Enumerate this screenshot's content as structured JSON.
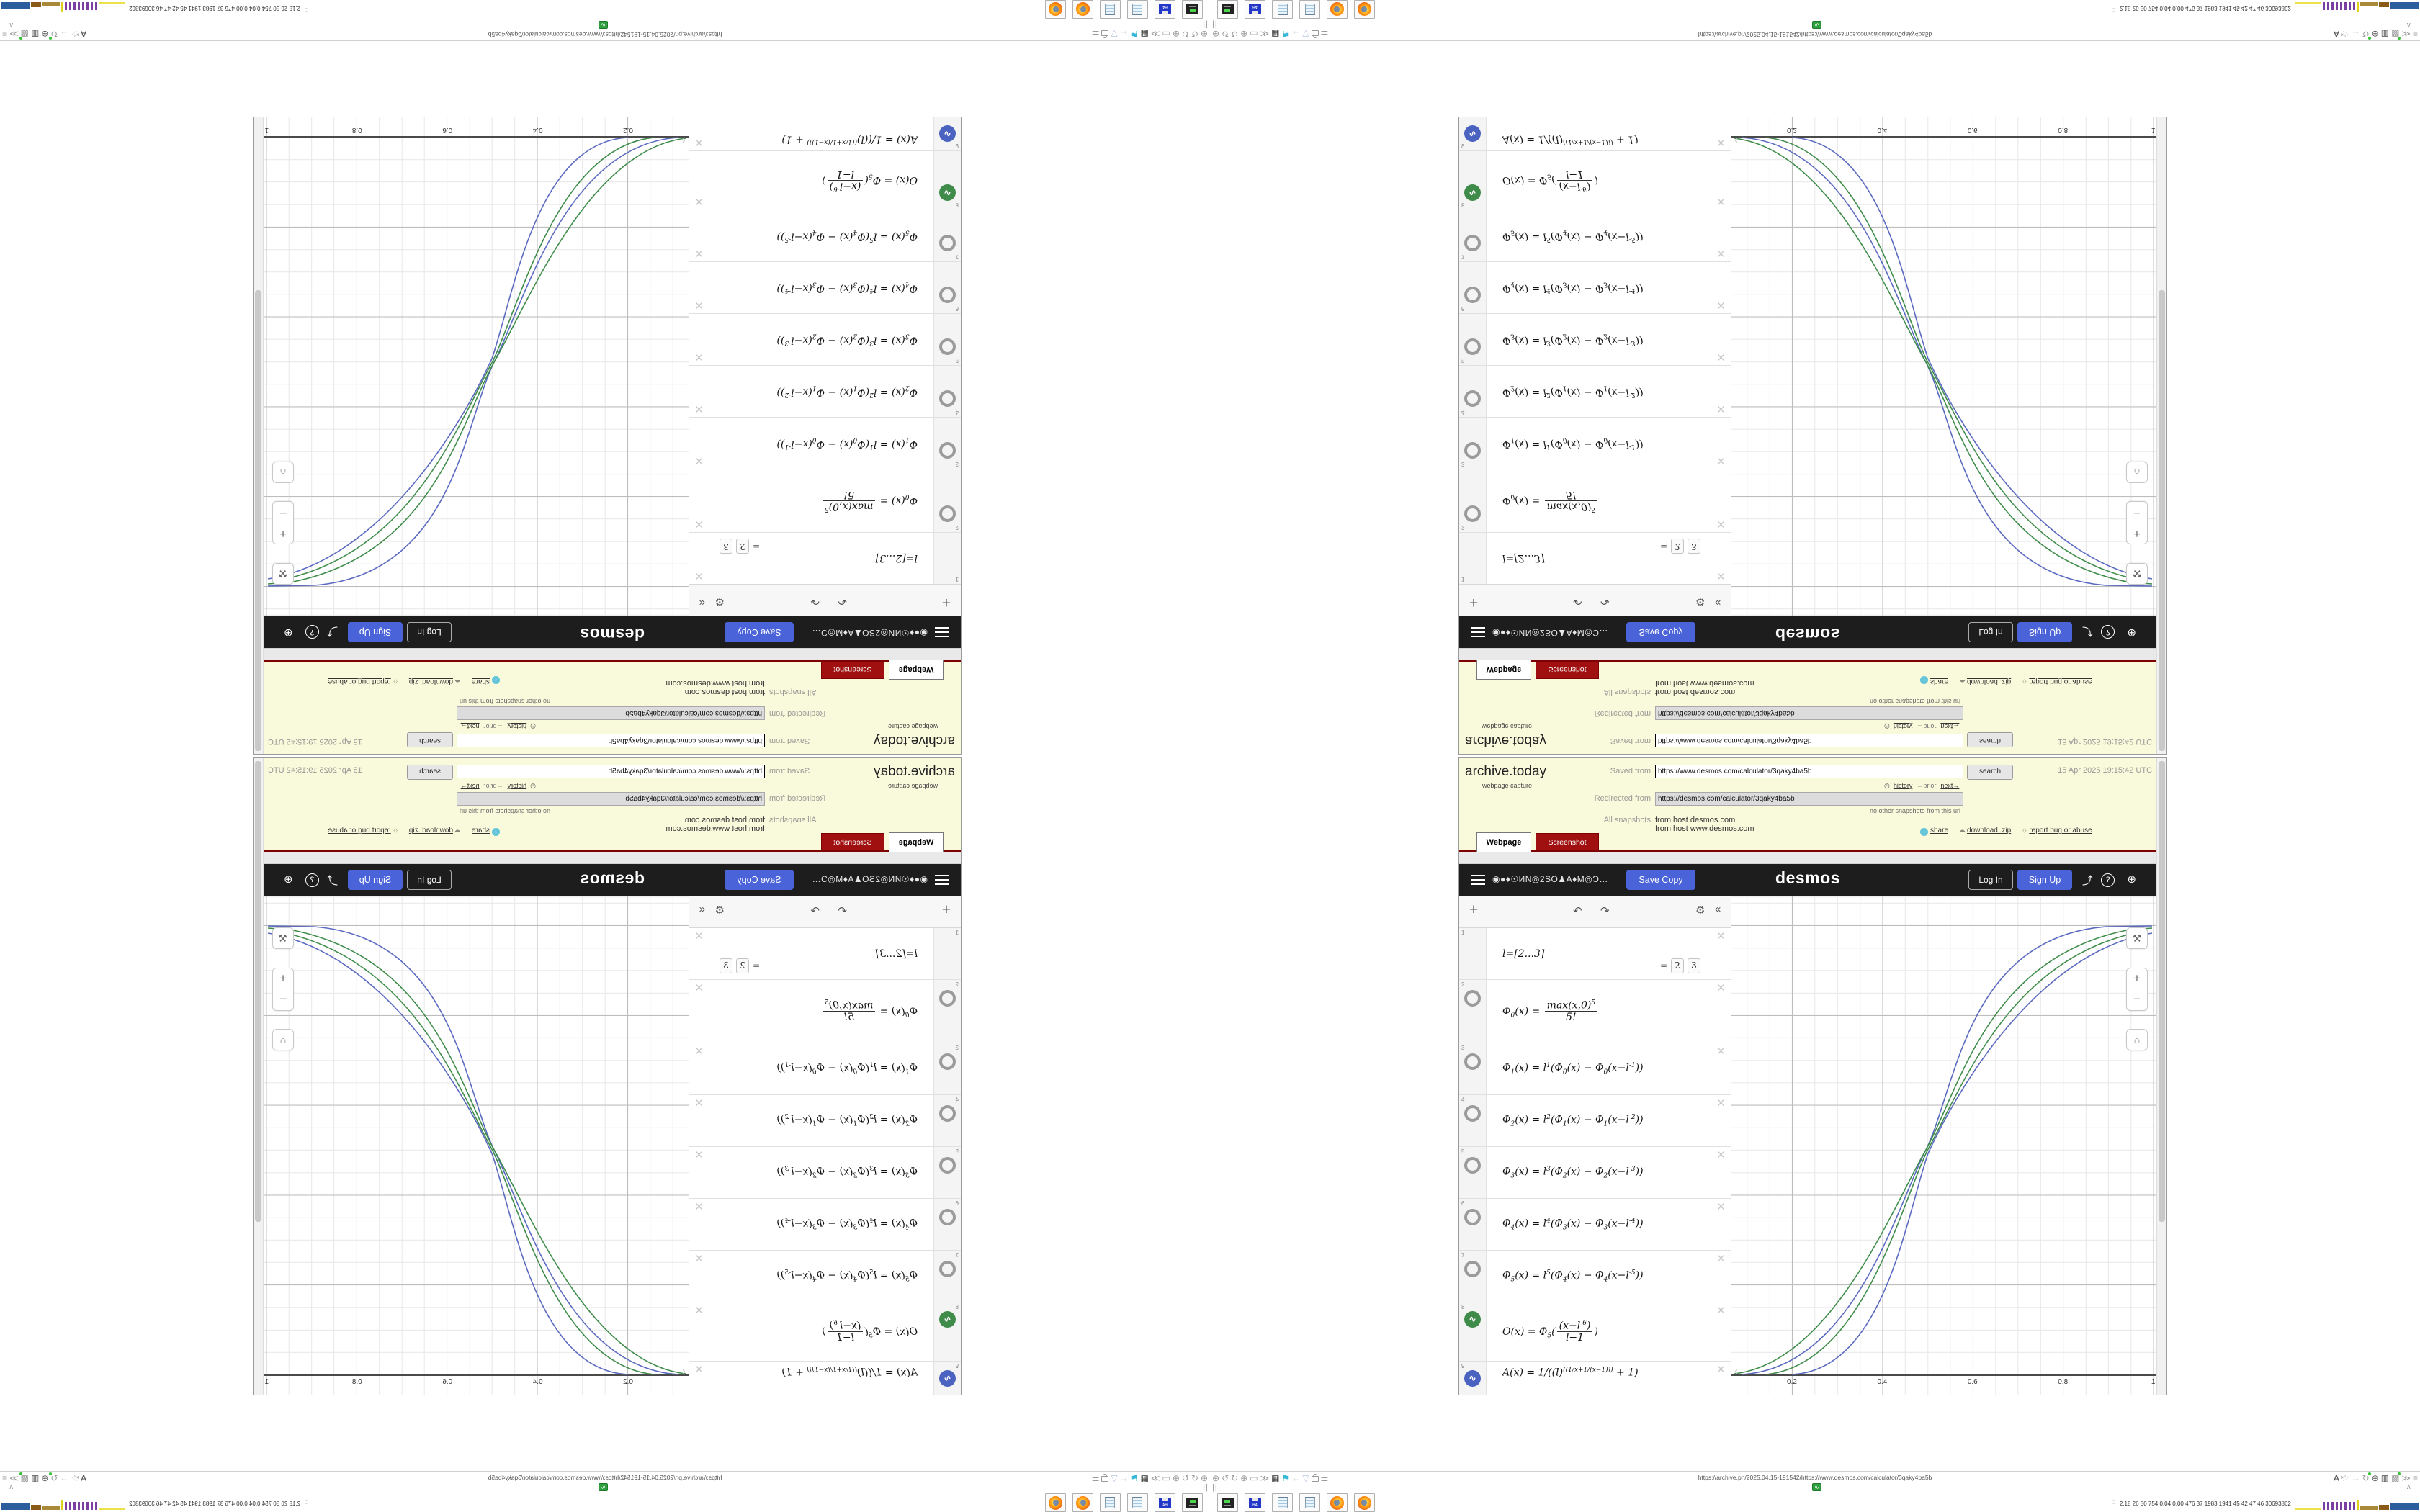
{
  "archive": {
    "brand": "archive.today",
    "tagline": "webpage capture",
    "saved_from_label": "Saved from",
    "saved_url": "https://www.desmos.com/calculator/3qaky4ba5b",
    "search_label": "search",
    "timestamp": "15 Apr 2025 19:15:42 UTC",
    "history_label": "history",
    "prior_label": "←prior",
    "next_label": "next→",
    "redirected_from_label": "Redirected from",
    "redirected_url": "https://desmos.com/calculator/3qaky4ba5b",
    "no_snapshots": "no other snapshots from this url",
    "all_snapshots_label": "All snapshots",
    "host_line_1": "from host desmos.com",
    "host_line_2": "from host www.desmos.com",
    "tab_webpage": "Webpage",
    "tab_screenshot": "Screenshot",
    "link_share": "share",
    "link_download": "download .zip",
    "link_report": "report bug or abuse",
    "accent_red": "#a01010"
  },
  "desmos": {
    "title_glyphs": "◉●♦☉ИN◎2SO♟A♦M◎Ɔ…",
    "save_copy_label": "Save Copy",
    "wordmark": "desmos",
    "log_in_label": "Log In",
    "sign_up_label": "Sign Up",
    "accent_blue": "#4a63d8",
    "toolbar": {
      "add": "+",
      "undo": "↶",
      "redo": "↷",
      "gear": "⚙",
      "collapse": "«"
    },
    "rows": [
      {
        "n": "1",
        "icon": "none",
        "m": "l=[2...3]",
        "results": [
          "2",
          "3"
        ]
      },
      {
        "n": "2",
        "icon": "ring",
        "m": "Φ_{0}(x) = @frac{max(x,0)^{5}}{5!}"
      },
      {
        "n": "3",
        "icon": "ring",
        "m": "Φ_{1}(x) = l^{1}(Φ_{0}(x) − Φ_{0}(x−l^{-1}))"
      },
      {
        "n": "4",
        "icon": "ring",
        "m": "Φ_{2}(x) = l^{2}(Φ_{1}(x) − Φ_{1}(x−l^{-2}))"
      },
      {
        "n": "5",
        "icon": "ring",
        "m": "Φ_{3}(x) = l^{3}(Φ_{2}(x) − Φ_{2}(x−l^{-3}))"
      },
      {
        "n": "6",
        "icon": "ring",
        "m": "Φ_{4}(x) = l^{4}(Φ_{3}(x) − Φ_{3}(x−l^{-4}))"
      },
      {
        "n": "7",
        "icon": "ring",
        "m": "Φ_{5}(x) = l^{5}(Φ_{4}(x) − Φ_{4}(x−l^{-5}))"
      },
      {
        "n": "8",
        "icon": "curve-green",
        "m": "O(x) = Φ_{5}(@frac{(x−l^{-6})}{l−1})"
      },
      {
        "n": "9",
        "icon": "curve-blue",
        "m": "A(x) = 1/((l)^{((1/x+1/(x−1)))} + 1)"
      }
    ],
    "result_eq": "="
  },
  "chart_data": {
    "type": "line",
    "title": "",
    "xlabel": "",
    "ylabel": "",
    "xlim": [
      0,
      1.06
    ],
    "ylim": [
      -0.05,
      1.07
    ],
    "x_ticks": [
      "0.2",
      "0.4",
      "0.6",
      "0.8",
      "1"
    ],
    "grid": "on",
    "series": [
      {
        "name": "A(x), l=3",
        "color": "#5b6ac0",
        "shape": "sigmoid 0→1, steepest, crosses (0.5,0.5)"
      },
      {
        "name": "O(x), l=3",
        "color": "#3f8c4a",
        "shape": "sigmoid 0→1, crosses (0.5,0.5)"
      },
      {
        "name": "O(x), l=2",
        "color": "#3f8c4a",
        "shape": "sigmoid 0→1, crosses (0.5,0.5)"
      },
      {
        "name": "A(x), l=2",
        "color": "#5b6ac0",
        "shape": "sigmoid 0→1, shallowest, crosses (0.5,0.5)"
      }
    ]
  },
  "graph_tools": {
    "wrench": "⚒",
    "zoom_in": "+",
    "zoom_out": "−",
    "home": "⌂",
    "keypad_hint": "‹"
  },
  "desktop": {
    "statusbar": {
      "url": "https://archive.ph/2025.04.15-191542/https://www.desmos.com/calculator/3qaky4ba5b",
      "left_icons": [
        {
          "name": "globe-cross",
          "g": "⊕"
        },
        {
          "name": "rotate-left",
          "g": "↺"
        },
        {
          "name": "rotate-right",
          "g": "↻"
        },
        {
          "name": "circle-plus",
          "g": "⊕"
        },
        {
          "name": "folder",
          "g": "▭"
        },
        {
          "name": "double-chevron-right",
          "g": "≫"
        },
        {
          "name": "trash",
          "g": "▦",
          "c": "#333"
        },
        {
          "name": "flag",
          "g": "⚑",
          "c": "#35b8d8"
        },
        {
          "name": "arrow-left",
          "g": "←"
        },
        {
          "name": "shield",
          "g": "▽",
          "c": "#b9c9e2"
        },
        {
          "name": "lock",
          "lock": true
        },
        {
          "name": "sliders",
          "g": "⚌"
        }
      ],
      "right_icons": [
        {
          "name": "translate",
          "g": "A",
          "c": "#444",
          "badge": "?"
        },
        {
          "name": "bookmark-star",
          "g": "☆"
        },
        {
          "name": "arrow-right",
          "g": "→"
        },
        {
          "name": "reload",
          "g": "↻",
          "dot": "#35c435"
        },
        {
          "name": "globe",
          "g": "⊕",
          "c": "#555"
        },
        {
          "name": "archive-box",
          "g": "▥",
          "c": "#444"
        },
        {
          "name": "puzzle-extension",
          "g": "▩",
          "dot": "#35c435"
        },
        {
          "name": "double-chevron-right",
          "g": "≫"
        },
        {
          "name": "menu",
          "g": "≡"
        }
      ]
    },
    "pause_label": "||",
    "chevron_up": "∧",
    "green_app_glyph": "∿",
    "dock": [
      {
        "name": "emulator",
        "type": "console"
      },
      {
        "name": "floppy-64",
        "type": "floppy",
        "label": "64"
      },
      {
        "name": "notepad",
        "type": "notepad"
      },
      {
        "name": "notepad",
        "type": "notepad"
      },
      {
        "name": "firefox",
        "type": "firefox"
      },
      {
        "name": "firefox",
        "type": "firefox"
      }
    ],
    "monitor": {
      "stats": "2.18  26  50  754 0.04 0.00 476  37  1983 1941  45  42  47  46 30693862",
      "chevrons": "⌃⌃"
    }
  }
}
